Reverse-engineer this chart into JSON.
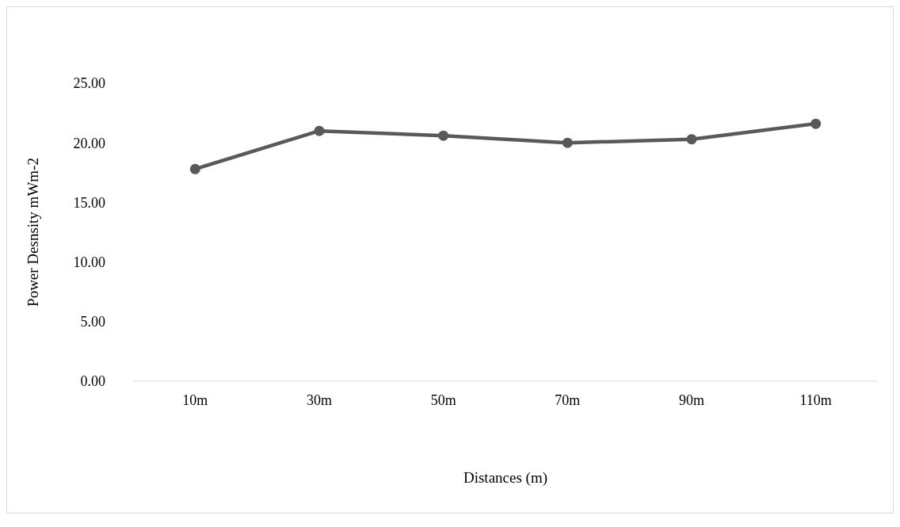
{
  "chart_data": {
    "type": "line",
    "xlabel": "Distances (m)",
    "ylabel": "Power Desnsity mWm-2",
    "categories": [
      "10m",
      "30m",
      "50m",
      "70m",
      "90m",
      "110m"
    ],
    "series": [
      {
        "color": "#595959",
        "values": [
          17.8,
          21.0,
          20.6,
          20.0,
          20.3,
          21.6
        ]
      }
    ],
    "ylim": [
      0,
      25
    ],
    "yticks": [
      {
        "value": 0,
        "label": "0.00"
      },
      {
        "value": 5,
        "label": "5.00"
      },
      {
        "value": 10,
        "label": "10.00"
      },
      {
        "value": 15,
        "label": "15.00"
      },
      {
        "value": 20,
        "label": "20.00"
      },
      {
        "value": 25,
        "label": "25.00"
      }
    ],
    "grid": false,
    "marker": "circle",
    "line_style": "solid"
  }
}
